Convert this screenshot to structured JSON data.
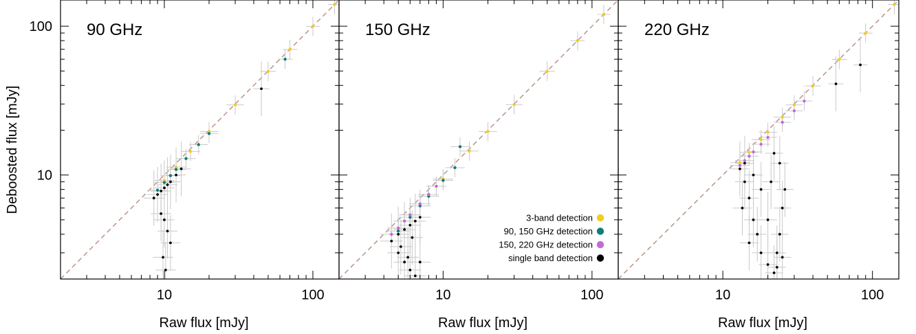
{
  "chart_data": {
    "type": "scatter",
    "xscale": "log",
    "yscale": "log",
    "xlim": [
      2,
      150
    ],
    "ylim": [
      2,
      150
    ],
    "xlabel": "Raw flux [mJy]",
    "ylabel": "Deboosted flux [mJy]",
    "x_tick_labels": [
      "10",
      "100"
    ],
    "y_tick_labels": [
      "10",
      "100"
    ],
    "x_tick_values": [
      10,
      100
    ],
    "y_tick_values": [
      10,
      100
    ],
    "reference_line": {
      "style": "dashed",
      "color": "#b88a80",
      "relation": "y = x"
    },
    "colors": {
      "three_band": "#f2cc1f",
      "ninety_150": "#0e7d7a",
      "one50_220": "#c36ad6",
      "single": "#000000",
      "errorbar": "#c8c8c8"
    },
    "legend": {
      "placement": "lower-right of middle panel",
      "entries": [
        {
          "label": "3-band detection",
          "color": "#f2cc1f"
        },
        {
          "label": "90, 150 GHz detection",
          "color": "#0e7d7a"
        },
        {
          "label": "150, 220 GHz detection",
          "color": "#c36ad6"
        },
        {
          "label": "single band detection",
          "color": "#000000"
        }
      ]
    },
    "panels": [
      {
        "label": "90 GHz",
        "series": [
          {
            "group": "three_band",
            "x": [
              10,
              12,
              15,
              20,
              30,
              50,
              70,
              100,
              140
            ],
            "y": [
              9.2,
              11.3,
              14.4,
              19.6,
              29.6,
              49.7,
              69.8,
              99.8,
              139.9
            ]
          },
          {
            "group": "ninety_150",
            "x": [
              9,
              10,
              11,
              12,
              14,
              17,
              20,
              65
            ],
            "y": [
              7.9,
              8.9,
              9.9,
              10.9,
              12.9,
              16.0,
              19.0,
              60
            ]
          },
          {
            "group": "single",
            "x": [
              8.5,
              9,
              9.5,
              10,
              10.5,
              11,
              12,
              13,
              9.5,
              10,
              10.5,
              11,
              9.8,
              10.2,
              45
            ],
            "y": [
              7.0,
              7.4,
              7.8,
              8.2,
              8.6,
              9.0,
              10.0,
              11.0,
              5.5,
              5.0,
              4.2,
              3.5,
              2.8,
              2.3,
              38
            ]
          }
        ]
      },
      {
        "label": "150 GHz",
        "series": [
          {
            "group": "three_band",
            "x": [
              5,
              6,
              8,
              10,
              15,
              20,
              30,
              50,
              80,
              120
            ],
            "y": [
              4.4,
              5.4,
              7.4,
              9.4,
              14.5,
              19.6,
              29.7,
              49.8,
              79.9,
              119.9
            ]
          },
          {
            "group": "ninety_150",
            "x": [
              5,
              6,
              7,
              8,
              10,
              12,
              13
            ],
            "y": [
              4.2,
              5.2,
              6.2,
              7.2,
              9.2,
              11.2,
              15.5
            ]
          },
          {
            "group": "one50_220",
            "x": [
              4.5,
              5,
              5.5,
              6,
              7,
              8,
              9
            ],
            "y": [
              4.0,
              4.4,
              4.9,
              5.4,
              6.4,
              7.4,
              8.4
            ]
          },
          {
            "group": "single",
            "x": [
              4.5,
              5,
              5.5,
              6,
              6.5,
              7,
              5,
              5.5,
              6,
              6.5,
              5.2,
              5.8,
              6.2,
              7
            ],
            "y": [
              3.6,
              4.0,
              4.3,
              4.6,
              4.9,
              5.2,
              3.0,
              2.6,
              2.3,
              2.1,
              3.3,
              2.8,
              3.8,
              2.6
            ]
          }
        ]
      },
      {
        "label": "220 GHz",
        "series": [
          {
            "group": "three_band",
            "x": [
              13,
              15,
              18,
              20,
              25,
              30,
              40,
              60,
              90,
              140
            ],
            "y": [
              12.1,
              14.2,
              17.3,
              19.4,
              24.5,
              29.6,
              39.7,
              59.8,
              89.9,
              139.9
            ]
          },
          {
            "group": "one50_220",
            "x": [
              13,
              14,
              15,
              16,
              18,
              20,
              25,
              30,
              35
            ],
            "y": [
              11.6,
              12.5,
              13.4,
              14.3,
              16.1,
              17.9,
              22.6,
              27.0,
              31.4
            ]
          },
          {
            "group": "single",
            "x": [
              13,
              14,
              15,
              16,
              17,
              18,
              20,
              22,
              23,
              24,
              25,
              26,
              14,
              16,
              18,
              22,
              24,
              13.5,
              15,
              23,
              25,
              20,
              21,
              83,
              57
            ],
            "y": [
              11,
              9,
              7,
              5,
              4,
              3,
              2.5,
              2.2,
              3,
              4,
              6,
              8,
              12,
              10,
              8,
              14,
              12,
              6,
              3.5,
              2.4,
              2.8,
              5,
              9,
              55,
              41
            ]
          }
        ]
      }
    ]
  }
}
